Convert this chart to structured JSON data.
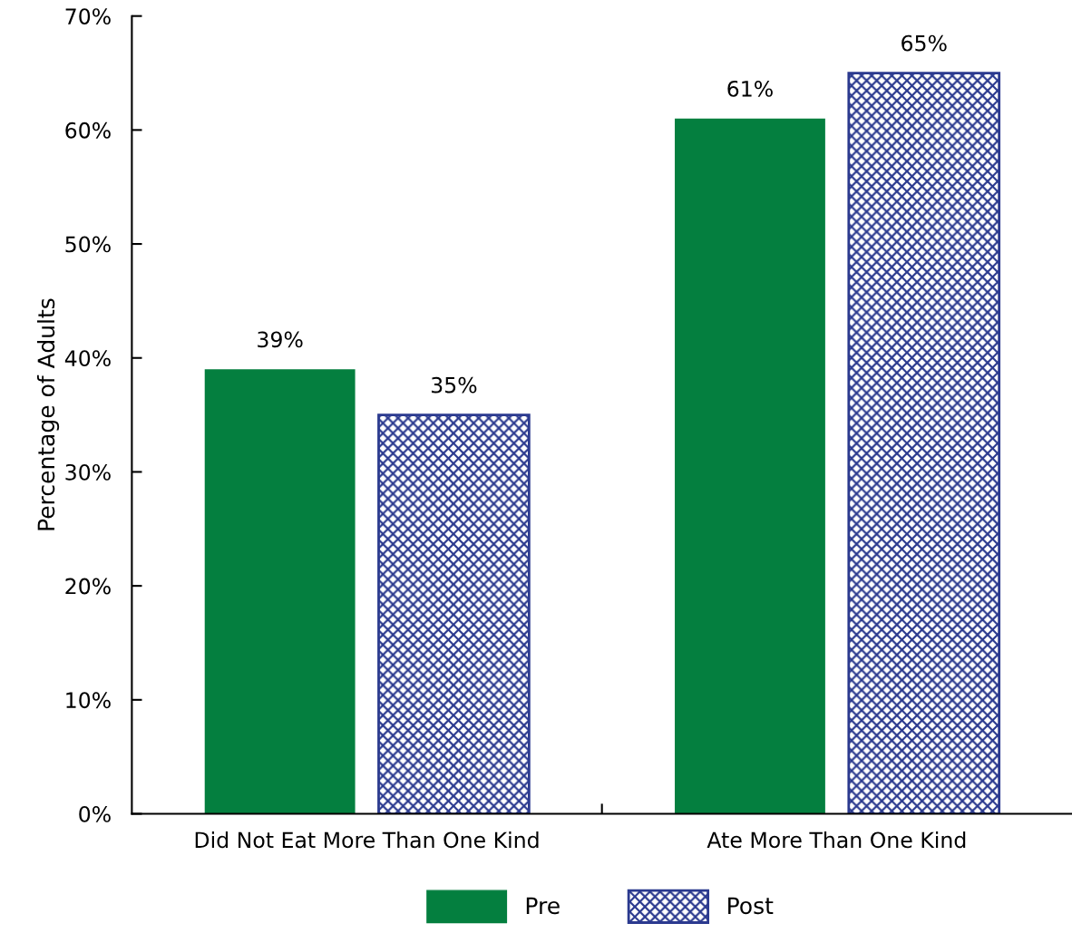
{
  "chart_data": {
    "type": "bar",
    "ylabel": "Percentage of Adults",
    "categories": [
      "Did Not Eat More Than One Kind",
      "Ate More Than One Kind"
    ],
    "series": [
      {
        "name": "Pre",
        "color": "#047f3f",
        "values": [
          39,
          61
        ]
      },
      {
        "name": "Post",
        "color": "#2b3a8f",
        "values": [
          35,
          65
        ]
      }
    ],
    "value_labels": [
      [
        "39%",
        "61%"
      ],
      [
        "35%",
        "65%"
      ]
    ],
    "ylim": [
      0,
      70
    ],
    "yticks": [
      {
        "value": 0,
        "label": "0%"
      },
      {
        "value": 10,
        "label": "10%"
      },
      {
        "value": 20,
        "label": "20%"
      },
      {
        "value": 30,
        "label": "30%"
      },
      {
        "value": 40,
        "label": "40%"
      },
      {
        "value": 50,
        "label": "50%"
      },
      {
        "value": 60,
        "label": "60%"
      },
      {
        "value": 70,
        "label": "70%"
      }
    ],
    "grid": false,
    "legend": "bottom"
  }
}
